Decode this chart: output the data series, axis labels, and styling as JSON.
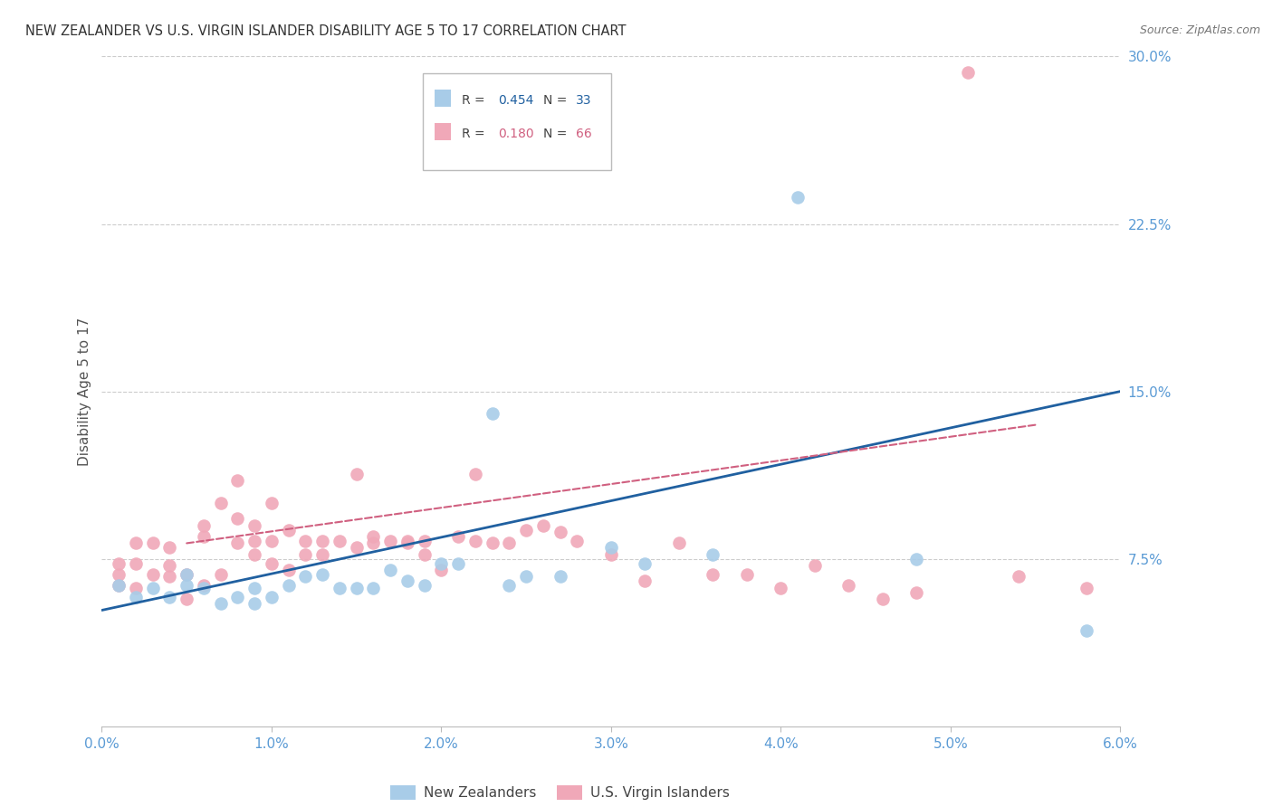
{
  "title": "NEW ZEALANDER VS U.S. VIRGIN ISLANDER DISABILITY AGE 5 TO 17 CORRELATION CHART",
  "source": "Source: ZipAtlas.com",
  "ylabel": "Disability Age 5 to 17",
  "xlim": [
    0.0,
    0.06
  ],
  "ylim": [
    0.0,
    0.3
  ],
  "blue_R": 0.454,
  "blue_N": 33,
  "pink_R": 0.18,
  "pink_N": 66,
  "blue_color": "#A8CCE8",
  "pink_color": "#F0A8B8",
  "line_blue": "#2060A0",
  "line_pink": "#D06080",
  "axis_tick_color": "#5B9BD5",
  "title_color": "#333333",
  "ylabel_color": "#555555",
  "grid_color": "#CCCCCC",
  "source_color": "#777777",
  "blue_scatter_x": [
    0.001,
    0.002,
    0.003,
    0.004,
    0.005,
    0.005,
    0.006,
    0.007,
    0.008,
    0.009,
    0.009,
    0.01,
    0.011,
    0.012,
    0.013,
    0.014,
    0.015,
    0.016,
    0.017,
    0.018,
    0.019,
    0.02,
    0.021,
    0.023,
    0.024,
    0.025,
    0.027,
    0.03,
    0.032,
    0.036,
    0.041,
    0.048,
    0.058
  ],
  "blue_scatter_y": [
    0.063,
    0.058,
    0.062,
    0.058,
    0.063,
    0.068,
    0.062,
    0.055,
    0.058,
    0.055,
    0.062,
    0.058,
    0.063,
    0.067,
    0.068,
    0.062,
    0.062,
    0.062,
    0.07,
    0.065,
    0.063,
    0.073,
    0.073,
    0.14,
    0.063,
    0.067,
    0.067,
    0.08,
    0.073,
    0.077,
    0.237,
    0.075,
    0.043
  ],
  "pink_scatter_x": [
    0.001,
    0.001,
    0.001,
    0.002,
    0.002,
    0.002,
    0.003,
    0.003,
    0.004,
    0.004,
    0.004,
    0.005,
    0.005,
    0.006,
    0.006,
    0.006,
    0.007,
    0.007,
    0.008,
    0.008,
    0.008,
    0.009,
    0.009,
    0.009,
    0.01,
    0.01,
    0.01,
    0.011,
    0.011,
    0.012,
    0.012,
    0.013,
    0.013,
    0.014,
    0.015,
    0.015,
    0.016,
    0.016,
    0.017,
    0.018,
    0.018,
    0.019,
    0.019,
    0.02,
    0.021,
    0.022,
    0.022,
    0.023,
    0.024,
    0.025,
    0.026,
    0.027,
    0.028,
    0.03,
    0.032,
    0.034,
    0.036,
    0.038,
    0.04,
    0.042,
    0.044,
    0.046,
    0.048,
    0.051,
    0.054,
    0.058
  ],
  "pink_scatter_y": [
    0.063,
    0.068,
    0.073,
    0.062,
    0.073,
    0.082,
    0.068,
    0.082,
    0.067,
    0.072,
    0.08,
    0.057,
    0.068,
    0.063,
    0.085,
    0.09,
    0.068,
    0.1,
    0.093,
    0.082,
    0.11,
    0.083,
    0.09,
    0.077,
    0.073,
    0.083,
    0.1,
    0.07,
    0.088,
    0.077,
    0.083,
    0.077,
    0.083,
    0.083,
    0.08,
    0.113,
    0.082,
    0.085,
    0.083,
    0.082,
    0.083,
    0.077,
    0.083,
    0.07,
    0.085,
    0.083,
    0.113,
    0.082,
    0.082,
    0.088,
    0.09,
    0.087,
    0.083,
    0.077,
    0.065,
    0.082,
    0.068,
    0.068,
    0.062,
    0.072,
    0.063,
    0.057,
    0.06,
    0.293,
    0.067,
    0.062
  ],
  "blue_line_x0": 0.0,
  "blue_line_y0": 0.052,
  "blue_line_x1": 0.06,
  "blue_line_y1": 0.15,
  "pink_line_x0": 0.005,
  "pink_line_y0": 0.082,
  "pink_line_x1": 0.055,
  "pink_line_y1": 0.135,
  "x_ticks": [
    0.0,
    0.01,
    0.02,
    0.03,
    0.04,
    0.05,
    0.06
  ],
  "x_tick_labels": [
    "0.0%",
    "1.0%",
    "2.0%",
    "3.0%",
    "4.0%",
    "5.0%",
    "6.0%"
  ],
  "y_ticks": [
    0.075,
    0.15,
    0.225,
    0.3
  ],
  "y_tick_labels": [
    "7.5%",
    "15.0%",
    "22.5%",
    "30.0%"
  ]
}
